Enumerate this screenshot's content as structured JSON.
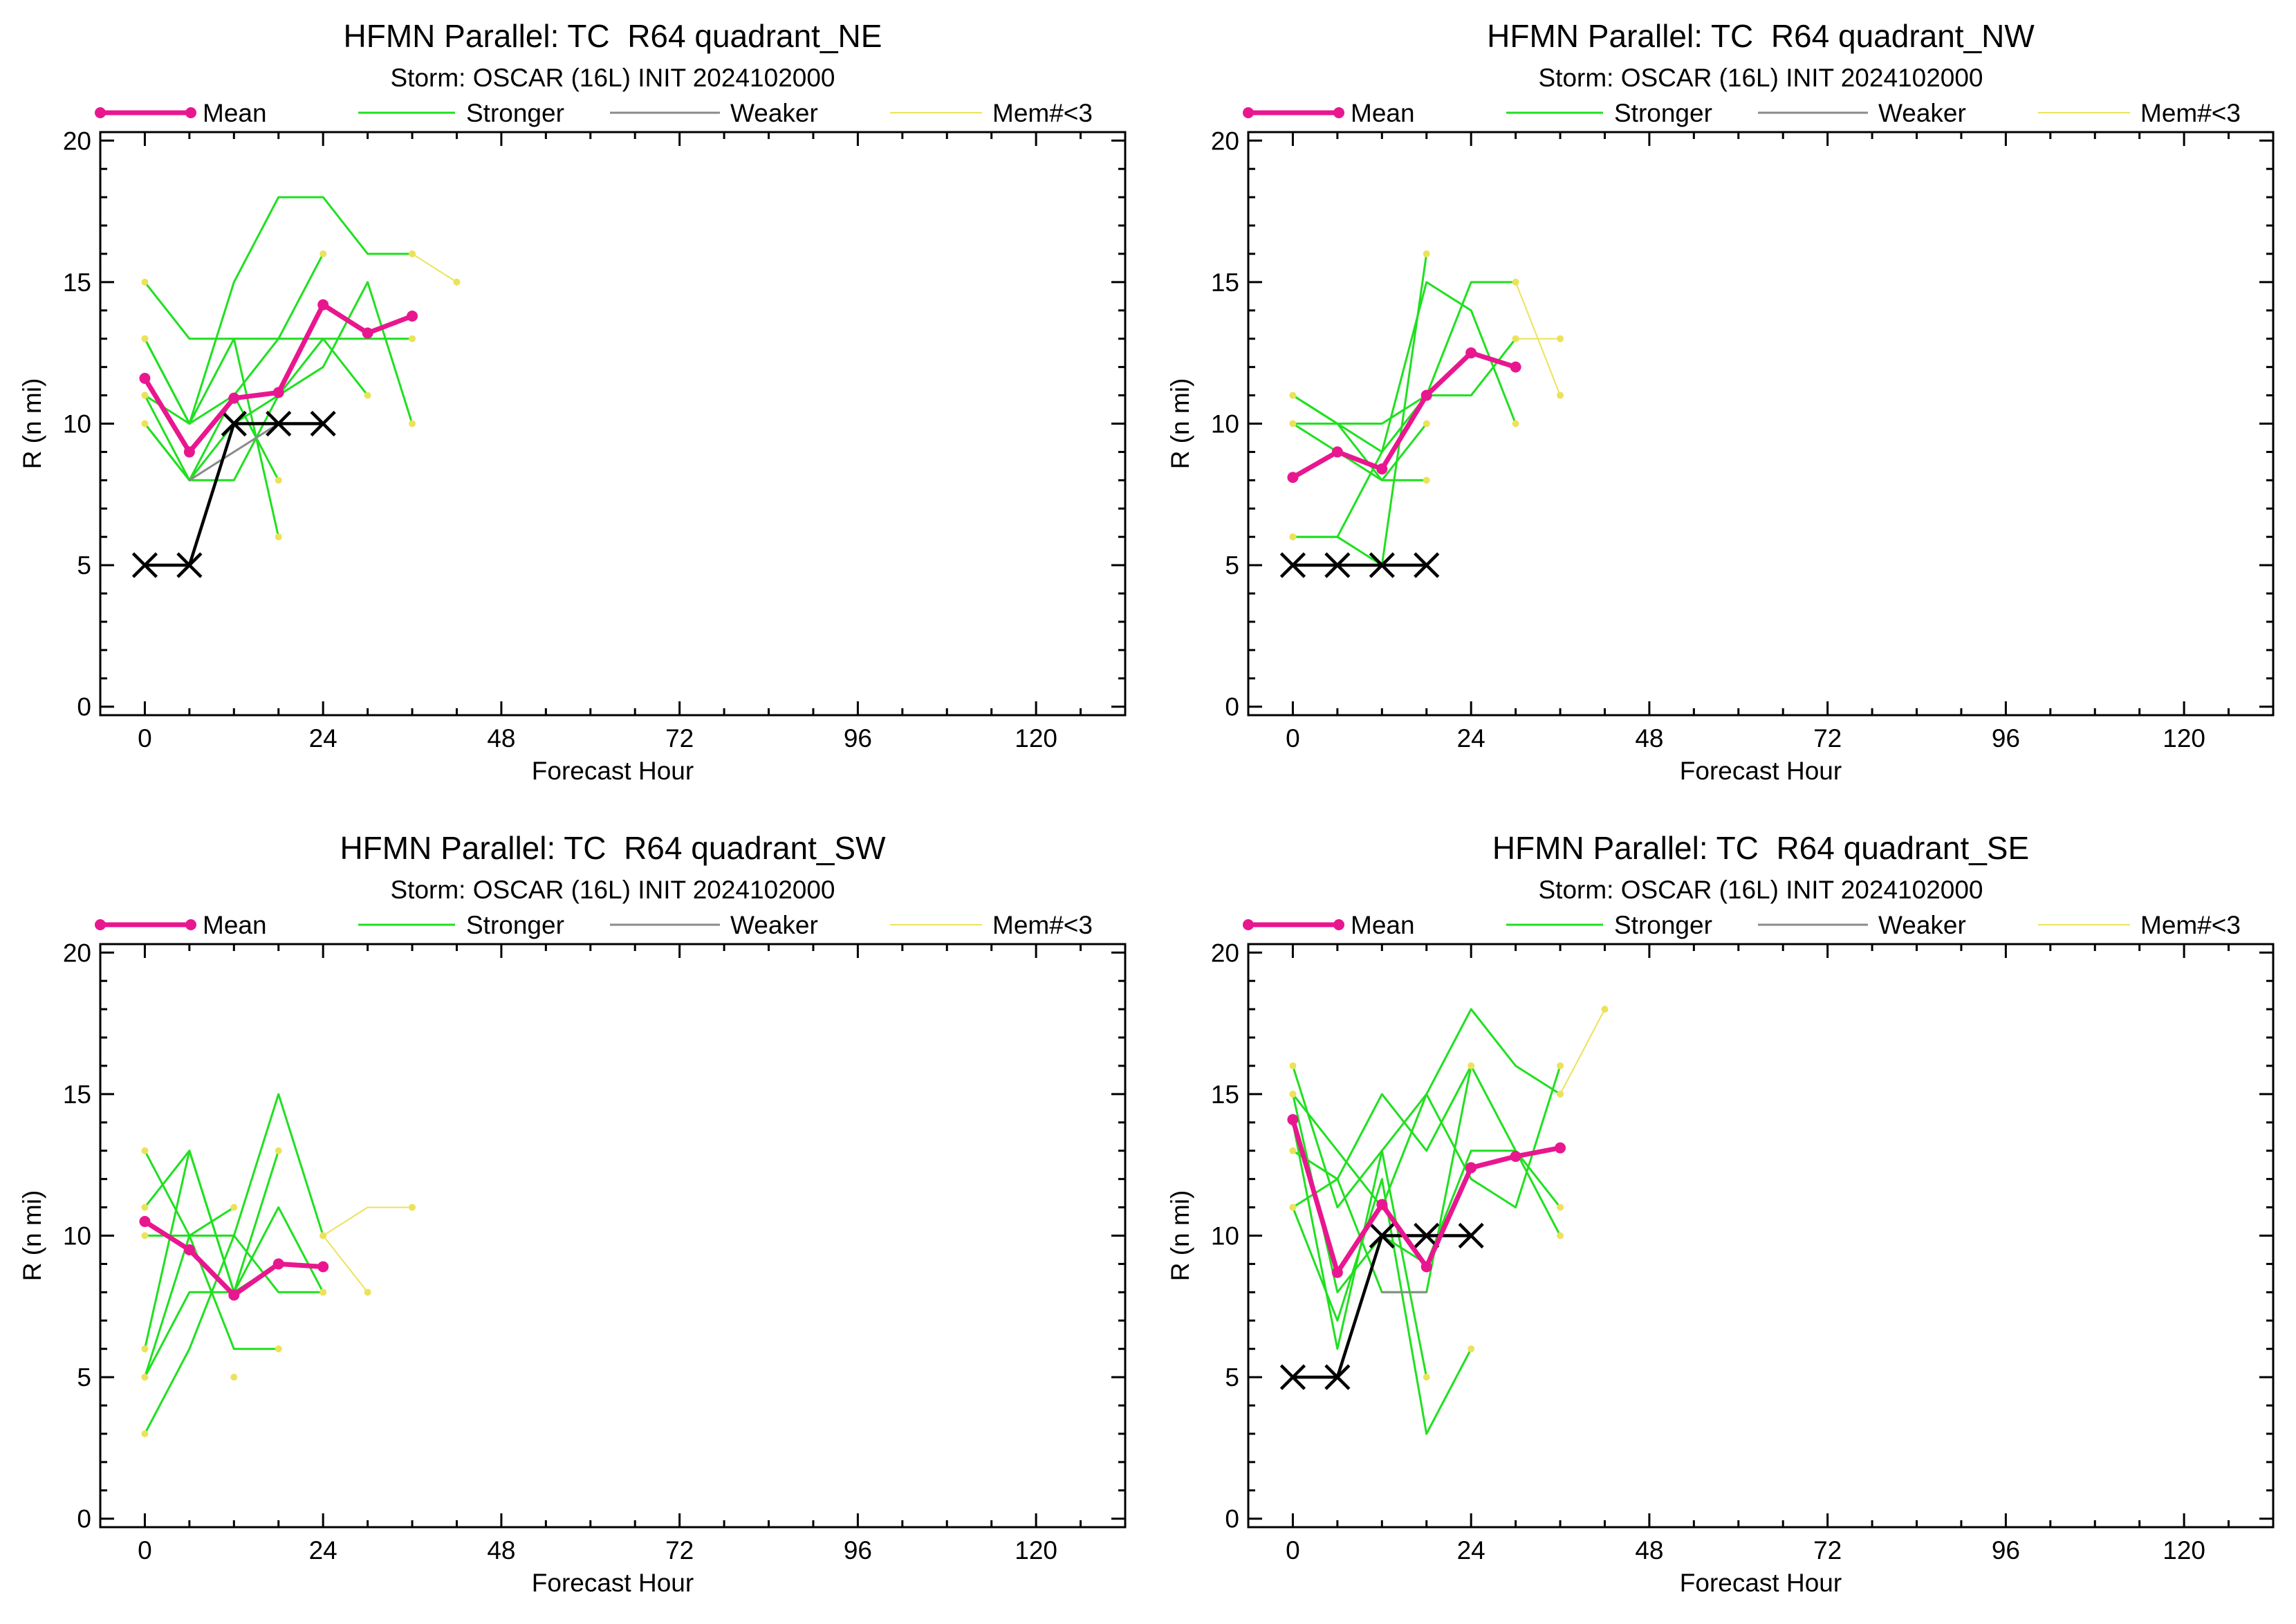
{
  "chart_data": [
    {
      "type": "line",
      "title": "HFMN Parallel: TC  R64 quadrant_NE",
      "subtitle": "Storm: OSCAR (16L) INIT 2024102000",
      "xlabel": "Forecast Hour",
      "ylabel": "R (n mi)",
      "xlim": [
        -6,
        132
      ],
      "ylim": [
        -0.3,
        20.3
      ],
      "xticks": [
        0,
        24,
        48,
        72,
        96,
        120
      ],
      "yticks": [
        0,
        5,
        10,
        15,
        20
      ],
      "grid": false,
      "legend": "top",
      "series": [
        {
          "name": "Mean",
          "color": "#e8178f",
          "marker": "circle",
          "x": [
            0,
            6,
            12,
            18,
            24,
            30,
            36
          ],
          "y": [
            11.6,
            9.0,
            10.9,
            11.1,
            14.2,
            13.2,
            13.8
          ]
        },
        {
          "name": "Stronger",
          "color": "#1fe01f",
          "members": [
            {
              "x": [
                0,
                6,
                12,
                18,
                24,
                30,
                36
              ],
              "y": [
                15,
                13,
                13,
                13,
                13,
                13,
                13
              ]
            },
            {
              "x": [
                0,
                6,
                12,
                18,
                24,
                30,
                36
              ],
              "y": [
                13,
                10,
                15,
                18,
                18,
                16,
                16
              ]
            },
            {
              "x": [
                0,
                6,
                12,
                18,
                24,
                30
              ],
              "y": [
                11,
                8,
                8,
                11,
                13,
                11
              ]
            },
            {
              "x": [
                0,
                6,
                12,
                18,
                24,
                30,
                36
              ],
              "y": [
                10,
                8,
                10,
                11,
                12,
                15,
                10
              ]
            },
            {
              "x": [
                0,
                6,
                12,
                18
              ],
              "y": [
                11,
                10,
                13,
                6
              ]
            },
            {
              "x": [
                0,
                6,
                12,
                18
              ],
              "y": [
                10,
                8,
                11,
                8
              ]
            },
            {
              "x": [
                0,
                6,
                12,
                18,
                24
              ],
              "y": [
                13,
                10,
                11,
                13,
                16
              ]
            }
          ]
        },
        {
          "name": "Weaker",
          "color": "#8a8a8a",
          "members": [
            {
              "x": [
                6,
                12,
                18
              ],
              "y": [
                8,
                9,
                10
              ]
            }
          ]
        },
        {
          "name": "Mem#<3",
          "color": "#ece25a",
          "members": [
            {
              "x": [
                36,
                42
              ],
              "y": [
                16,
                15
              ]
            }
          ]
        },
        {
          "color": "#000000",
          "marker": "x",
          "x": [
            0,
            6,
            12,
            18,
            24
          ],
          "y": [
            5,
            5,
            10,
            10,
            10
          ]
        }
      ]
    },
    {
      "type": "line",
      "title": "HFMN Parallel: TC  R64 quadrant_NW",
      "subtitle": "Storm: OSCAR (16L) INIT 2024102000",
      "xlabel": "Forecast Hour",
      "ylabel": "R (n mi)",
      "xlim": [
        -6,
        132
      ],
      "ylim": [
        -0.3,
        20.3
      ],
      "xticks": [
        0,
        24,
        48,
        72,
        96,
        120
      ],
      "yticks": [
        0,
        5,
        10,
        15,
        20
      ],
      "grid": false,
      "legend": "top",
      "series": [
        {
          "name": "Mean",
          "color": "#e8178f",
          "marker": "circle",
          "x": [
            0,
            6,
            12,
            18,
            24,
            30
          ],
          "y": [
            8.1,
            9.0,
            8.4,
            11.0,
            12.5,
            12.0
          ]
        },
        {
          "name": "Stronger",
          "color": "#1fe01f",
          "members": [
            {
              "x": [
                0,
                6,
                12,
                18,
                24,
                30
              ],
              "y": [
                11,
                10,
                10,
                11,
                15,
                15
              ]
            },
            {
              "x": [
                0,
                6,
                12,
                18,
                24,
                30
              ],
              "y": [
                10,
                10,
                9,
                11,
                11,
                13
              ]
            },
            {
              "x": [
                0,
                6,
                12,
                18
              ],
              "y": [
                6,
                6,
                5,
                16
              ]
            },
            {
              "x": [
                0,
                6,
                12,
                18
              ],
              "y": [
                10,
                9,
                8,
                8
              ]
            },
            {
              "x": [
                0,
                6,
                12,
                18
              ],
              "y": [
                11,
                10,
                8,
                10
              ]
            },
            {
              "x": [
                0,
                6,
                12,
                18,
                24,
                30
              ],
              "y": [
                6,
                6,
                9,
                15,
                14,
                10
              ]
            }
          ]
        },
        {
          "name": "Weaker",
          "color": "#8a8a8a",
          "members": []
        },
        {
          "name": "Mem#<3",
          "color": "#ece25a",
          "members": [
            {
              "x": [
                30,
                36
              ],
              "y": [
                15,
                11
              ]
            },
            {
              "x": [
                30,
                36
              ],
              "y": [
                13,
                13
              ]
            }
          ]
        },
        {
          "color": "#000000",
          "marker": "x",
          "x": [
            0,
            6,
            12,
            18
          ],
          "y": [
            5,
            5,
            5,
            5
          ]
        }
      ]
    },
    {
      "type": "line",
      "title": "HFMN Parallel: TC  R64 quadrant_SW",
      "subtitle": "Storm: OSCAR (16L) INIT 2024102000",
      "xlabel": "Forecast Hour",
      "ylabel": "R (n mi)",
      "xlim": [
        -6,
        132
      ],
      "ylim": [
        -0.3,
        20.3
      ],
      "xticks": [
        0,
        24,
        48,
        72,
        96,
        120
      ],
      "yticks": [
        0,
        5,
        10,
        15,
        20
      ],
      "grid": false,
      "legend": "top",
      "series": [
        {
          "name": "Mean",
          "color": "#e8178f",
          "marker": "circle",
          "x": [
            0,
            6,
            12,
            18,
            24
          ],
          "y": [
            10.5,
            9.5,
            7.9,
            9.0,
            8.9
          ]
        },
        {
          "name": "Stronger",
          "color": "#1fe01f",
          "members": [
            {
              "x": [
                0,
                6,
                12,
                18,
                24
              ],
              "y": [
                13,
                10,
                10,
                15,
                10
              ]
            },
            {
              "x": [
                0,
                6,
                12,
                18,
                24
              ],
              "y": [
                11,
                13,
                8,
                11,
                8
              ]
            },
            {
              "x": [
                0,
                6,
                12,
                18
              ],
              "y": [
                6,
                13,
                8,
                9
              ]
            },
            {
              "x": [
                0,
                6,
                12,
                18
              ],
              "y": [
                5,
                8,
                8,
                13
              ]
            },
            {
              "x": [
                0,
                6,
                12,
                18,
                24
              ],
              "y": [
                3,
                6,
                10,
                8,
                8
              ]
            },
            {
              "x": [
                0,
                6,
                12,
                18
              ],
              "y": [
                10,
                10,
                6,
                6
              ]
            },
            {
              "x": [
                0,
                6,
                12
              ],
              "y": [
                5,
                10,
                11
              ]
            },
            {
              "x": [
                12
              ],
              "y": [
                5
              ]
            }
          ]
        },
        {
          "name": "Weaker",
          "color": "#8a8a8a",
          "members": []
        },
        {
          "name": "Mem#<3",
          "color": "#ece25a",
          "members": [
            {
              "x": [
                24,
                30,
                36
              ],
              "y": [
                10,
                11,
                11
              ]
            },
            {
              "x": [
                24,
                30
              ],
              "y": [
                10,
                8
              ]
            }
          ]
        }
      ]
    },
    {
      "type": "line",
      "title": "HFMN Parallel: TC  R64 quadrant_SE",
      "subtitle": "Storm: OSCAR (16L) INIT 2024102000",
      "xlabel": "Forecast Hour",
      "ylabel": "R (n mi)",
      "xlim": [
        -6,
        132
      ],
      "ylim": [
        -0.3,
        20.3
      ],
      "xticks": [
        0,
        24,
        48,
        72,
        96,
        120
      ],
      "yticks": [
        0,
        5,
        10,
        15,
        20
      ],
      "grid": false,
      "legend": "top",
      "series": [
        {
          "name": "Mean",
          "color": "#e8178f",
          "marker": "circle",
          "x": [
            0,
            6,
            12,
            18,
            24,
            30,
            36
          ],
          "y": [
            14.1,
            8.7,
            11.1,
            8.9,
            12.4,
            12.8,
            13.1
          ]
        },
        {
          "name": "Stronger",
          "color": "#1fe01f",
          "members": [
            {
              "x": [
                0,
                6,
                12,
                18,
                24,
                30,
                36
              ],
              "y": [
                16,
                11,
                13,
                15,
                18,
                16,
                15
              ]
            },
            {
              "x": [
                0,
                6,
                12,
                18,
                24,
                30,
                36
              ],
              "y": [
                15,
                13,
                11,
                15,
                12,
                11,
                16
              ]
            },
            {
              "x": [
                0,
                6,
                12,
                18,
                24,
                30,
                36
              ],
              "y": [
                11,
                12,
                15,
                13,
                16,
                13,
                11
              ]
            },
            {
              "x": [
                0,
                6,
                12,
                18
              ],
              "y": [
                14,
                6,
                13,
                5
              ]
            },
            {
              "x": [
                0,
                6,
                12,
                18,
                24
              ],
              "y": [
                11,
                7,
                12,
                3,
                6
              ]
            },
            {
              "x": [
                0,
                6,
                12,
                18,
                24,
                30,
                36
              ],
              "y": [
                15,
                8,
                10,
                9,
                13,
                13,
                10
              ]
            },
            {
              "x": [
                0,
                6,
                12,
                18,
                24
              ],
              "y": [
                13,
                12,
                8,
                8,
                16
              ]
            }
          ]
        },
        {
          "name": "Weaker",
          "color": "#8a8a8a",
          "members": [
            {
              "x": [
                12,
                18
              ],
              "y": [
                8,
                8
              ]
            }
          ]
        },
        {
          "name": "Mem#<3",
          "color": "#ece25a",
          "members": [
            {
              "x": [
                36,
                42
              ],
              "y": [
                15,
                18
              ]
            }
          ]
        },
        {
          "color": "#000000",
          "marker": "x",
          "x": [
            0,
            6,
            12,
            18,
            24
          ],
          "y": [
            5,
            5,
            10,
            10,
            10
          ]
        }
      ]
    }
  ]
}
